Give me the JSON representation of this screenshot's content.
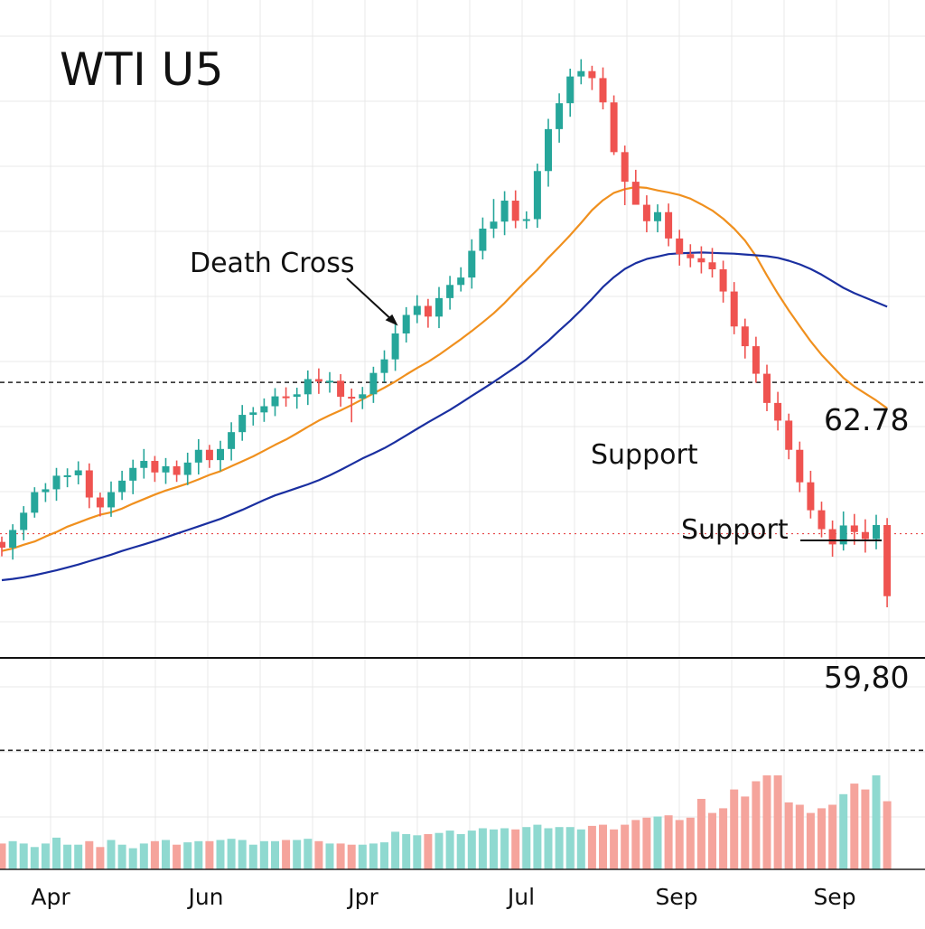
{
  "chart_data": {
    "type": "candlestick",
    "title": "WTI U5",
    "x_tick_labels": [
      "Apr",
      "Jun",
      "Jpr",
      "Jul",
      "Sep",
      "Sep"
    ],
    "annotations": {
      "death_cross": "Death Cross",
      "support_upper": "Support",
      "support_lower": "Support"
    },
    "price_labels": [
      "62.78",
      "59,80"
    ],
    "colors": {
      "up": "#26a69a",
      "down": "#ef5350",
      "ma_fast": "#f0901e",
      "ma_slow": "#1a2fa0",
      "volume_up": "#8fd9d0",
      "volume_down": "#f5a49c",
      "support_dotted": "#e8494a",
      "grid": "#e8e8e8"
    },
    "grid": true,
    "series": [
      {
        "kind": "ohlc",
        "open": [
          64.62,
          64.48,
          64.91,
          65.33,
          65.83,
          65.9,
          66.23,
          66.24,
          66.36,
          65.7,
          65.46,
          65.83,
          66.11,
          66.42,
          66.59,
          66.31,
          66.46,
          66.25,
          66.55,
          66.86,
          66.61,
          66.88,
          67.29,
          67.71,
          67.77,
          67.92,
          68.16,
          68.15,
          68.21,
          68.58,
          68.52,
          68.54,
          68.15,
          68.11,
          68.21,
          68.73,
          69.06,
          69.69,
          70.14,
          70.36,
          70.1,
          70.55,
          70.87,
          71.05,
          71.7,
          72.24,
          72.41,
          72.92,
          72.43,
          72.47,
          73.64,
          74.66,
          75.29,
          75.94,
          76.07,
          75.9,
          75.31,
          74.1,
          73.38,
          72.82,
          72.42,
          72.64,
          72.0,
          71.62,
          71.52,
          71.42,
          71.25,
          70.71,
          69.86,
          69.38,
          68.71,
          68.0,
          67.57,
          66.86,
          66.07,
          65.39,
          64.93,
          64.56,
          65.02,
          64.86,
          64.69,
          65.03
        ],
        "close": [
          64.48,
          64.91,
          65.33,
          65.83,
          65.9,
          66.23,
          66.24,
          66.36,
          65.7,
          65.46,
          65.83,
          66.11,
          66.42,
          66.59,
          66.31,
          66.46,
          66.25,
          66.55,
          66.86,
          66.61,
          66.88,
          67.29,
          67.71,
          67.77,
          67.92,
          68.16,
          68.15,
          68.21,
          68.58,
          68.52,
          68.54,
          68.15,
          68.11,
          68.21,
          68.73,
          69.06,
          69.69,
          70.14,
          70.36,
          70.1,
          70.55,
          70.87,
          71.05,
          71.7,
          72.24,
          72.41,
          72.92,
          72.43,
          72.47,
          73.64,
          74.66,
          75.29,
          75.94,
          76.07,
          75.9,
          75.31,
          74.1,
          73.38,
          72.82,
          72.42,
          72.64,
          72.0,
          71.62,
          71.52,
          71.42,
          71.25,
          70.71,
          69.86,
          69.38,
          68.71,
          68.0,
          67.57,
          66.86,
          66.07,
          65.39,
          64.93,
          64.56,
          65.02,
          64.86,
          64.69,
          65.03,
          63.3
        ],
        "high": [
          64.75,
          65.05,
          65.49,
          65.95,
          66.05,
          66.42,
          66.41,
          66.58,
          66.53,
          65.82,
          66.09,
          66.35,
          66.62,
          66.88,
          66.71,
          66.66,
          66.6,
          66.79,
          67.12,
          66.98,
          67.08,
          67.53,
          67.95,
          67.9,
          68.11,
          68.36,
          68.38,
          68.37,
          68.79,
          68.84,
          68.75,
          68.7,
          68.35,
          68.39,
          68.88,
          69.28,
          69.91,
          70.33,
          70.62,
          70.53,
          70.82,
          71.09,
          71.3,
          71.98,
          72.51,
          72.96,
          73.15,
          73.17,
          72.66,
          73.82,
          74.91,
          75.53,
          76.13,
          76.36,
          76.2,
          76.16,
          75.48,
          74.26,
          73.67,
          73.05,
          72.83,
          72.85,
          72.21,
          71.86,
          71.81,
          71.77,
          71.46,
          70.94,
          70.05,
          69.61,
          68.93,
          68.27,
          67.74,
          67.06,
          66.35,
          65.6,
          65.14,
          65.36,
          65.3,
          65.17,
          65.28,
          65.2
        ],
        "low": [
          64.27,
          64.19,
          64.66,
          65.21,
          65.59,
          65.62,
          65.95,
          66.02,
          65.44,
          65.24,
          65.23,
          65.64,
          65.78,
          66.16,
          66.08,
          66.03,
          66.08,
          66.0,
          66.26,
          66.42,
          66.34,
          66.6,
          67.08,
          67.45,
          67.54,
          67.68,
          67.91,
          67.86,
          67.95,
          68.22,
          68.25,
          67.91,
          67.53,
          67.85,
          68.0,
          68.51,
          68.78,
          69.47,
          69.94,
          69.83,
          69.82,
          70.27,
          70.71,
          70.78,
          71.49,
          72.01,
          72.08,
          72.25,
          72.24,
          72.26,
          73.26,
          74.33,
          74.96,
          75.75,
          75.61,
          75.14,
          74.03,
          72.81,
          72.96,
          72.15,
          72.15,
          71.81,
          71.34,
          71.3,
          71.15,
          71.05,
          70.44,
          69.67,
          69.08,
          68.49,
          67.8,
          67.33,
          66.63,
          65.83,
          65.19,
          64.73,
          64.26,
          64.41,
          64.55,
          64.36,
          64.44,
          63.03
        ]
      },
      {
        "kind": "line",
        "name": "",
        "role": "ma_fast",
        "values": [
          64.4,
          64.46,
          64.55,
          64.63,
          64.75,
          64.86,
          64.99,
          65.09,
          65.19,
          65.28,
          65.34,
          65.43,
          65.55,
          65.66,
          65.77,
          65.87,
          65.95,
          66.04,
          66.14,
          66.25,
          66.34,
          66.46,
          66.58,
          66.7,
          66.84,
          66.98,
          67.11,
          67.26,
          67.42,
          67.57,
          67.7,
          67.82,
          67.95,
          68.09,
          68.23,
          68.37,
          68.52,
          68.69,
          68.85,
          69.0,
          69.17,
          69.36,
          69.55,
          69.75,
          69.96,
          70.18,
          70.43,
          70.71,
          70.98,
          71.24,
          71.53,
          71.8,
          72.08,
          72.38,
          72.69,
          72.93,
          73.11,
          73.2,
          73.25,
          73.23,
          73.17,
          73.12,
          73.06,
          72.97,
          72.83,
          72.68,
          72.48,
          72.24,
          71.95,
          71.57,
          71.1,
          70.66,
          70.25,
          69.87,
          69.5,
          69.17,
          68.89,
          68.61,
          68.4,
          68.23,
          68.06,
          67.87
        ]
      },
      {
        "kind": "line",
        "name": "",
        "role": "ma_slow",
        "values": [
          63.69,
          63.72,
          63.76,
          63.81,
          63.87,
          63.93,
          64.0,
          64.07,
          64.15,
          64.23,
          64.31,
          64.4,
          64.48,
          64.56,
          64.64,
          64.73,
          64.82,
          64.91,
          65.0,
          65.09,
          65.18,
          65.29,
          65.4,
          65.52,
          65.64,
          65.75,
          65.84,
          65.93,
          66.02,
          66.12,
          66.24,
          66.37,
          66.51,
          66.65,
          66.77,
          66.9,
          67.05,
          67.21,
          67.37,
          67.53,
          67.68,
          67.83,
          68.0,
          68.17,
          68.34,
          68.51,
          68.69,
          68.87,
          69.06,
          69.29,
          69.51,
          69.76,
          70.0,
          70.26,
          70.53,
          70.82,
          71.06,
          71.26,
          71.4,
          71.5,
          71.56,
          71.62,
          71.64,
          71.65,
          71.66,
          71.65,
          71.64,
          71.63,
          71.61,
          71.59,
          71.57,
          71.53,
          71.46,
          71.37,
          71.26,
          71.12,
          70.96,
          70.8,
          70.67,
          70.56,
          70.45,
          70.34
        ]
      }
    ],
    "volume": [
      22,
      24,
      22,
      19,
      22,
      27,
      21,
      21,
      24,
      19,
      25,
      21,
      18,
      22,
      24,
      25,
      21,
      23,
      24,
      24,
      25,
      26,
      25,
      21,
      24,
      24,
      25,
      25,
      26,
      24,
      22,
      22,
      21,
      21,
      22,
      23,
      32,
      30,
      29,
      30,
      31,
      33,
      30,
      33,
      35,
      34,
      35,
      34,
      36,
      38,
      35,
      36,
      36,
      34,
      37,
      38,
      34,
      38,
      42,
      44,
      45,
      46,
      42,
      44,
      60,
      48,
      52,
      68,
      62,
      75,
      80,
      80,
      57,
      55,
      48,
      52,
      55,
      64,
      73,
      68,
      80,
      58
    ],
    "horizontal_lines": [
      {
        "role": "resistance_dashed",
        "y": 68.5
      },
      {
        "role": "support_dotted",
        "y": 64.82
      },
      {
        "role": "support_solid",
        "y": 61.8
      },
      {
        "role": "lower_dashed",
        "y": 59.55
      }
    ],
    "ylim": [
      56.7,
      77.8
    ]
  }
}
